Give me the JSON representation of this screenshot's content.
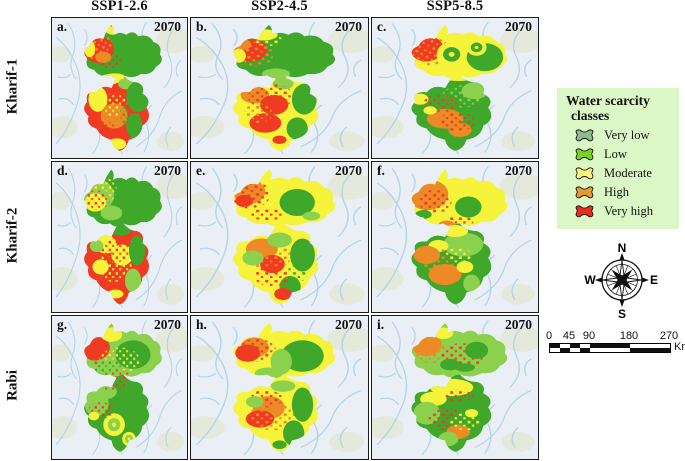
{
  "columns": [
    {
      "label": "SSP1-2.6"
    },
    {
      "label": "SSP2-4.5"
    },
    {
      "label": "SSP5-8.5"
    }
  ],
  "rows": [
    {
      "label": "Kharif-1"
    },
    {
      "label": "Kharif-2"
    },
    {
      "label": "Rabi"
    }
  ],
  "map_colors": {
    "green": "#3FA82A",
    "light_green": "#8CD14E",
    "yellow": "#F6F33B",
    "orange": "#EC8B26",
    "red": "#EE3B22",
    "water_bg": "#E9EFF4",
    "river": "#AECFE9",
    "terrain": "#E4E7D6"
  },
  "panels": [
    {
      "letter": "a.",
      "year": "2070",
      "scenario": "SSP1-2.6",
      "season": "Kharif-1",
      "north_base": "g",
      "south_base": "r",
      "blobs": [
        [
          "y",
          45,
          9,
          5,
          3,
          0
        ],
        [
          "r",
          35,
          23,
          11,
          9,
          -15
        ],
        [
          "so",
          33,
          20,
          12,
          9,
          -15
        ],
        [
          "sr",
          42,
          30,
          10,
          6,
          0
        ],
        [
          "y",
          28,
          22,
          4,
          6,
          0
        ],
        [
          "o",
          38,
          28,
          6,
          4,
          0
        ],
        [
          "y",
          42,
          44,
          12,
          4,
          -10
        ],
        [
          "y",
          34,
          58,
          7,
          9,
          0
        ],
        [
          "lg",
          55,
          47,
          6,
          4,
          0
        ],
        [
          "g",
          64,
          56,
          9,
          11,
          0
        ],
        [
          "g",
          61,
          77,
          6,
          9,
          0
        ],
        [
          "o",
          46,
          70,
          10,
          9,
          0
        ],
        [
          "sy",
          45,
          62,
          11,
          8,
          0
        ],
        [
          "sr",
          39,
          80,
          9,
          6,
          0
        ],
        [
          "y",
          48,
          90,
          7,
          4,
          0
        ],
        [
          "sg",
          58,
          68,
          8,
          10,
          0
        ]
      ]
    },
    {
      "letter": "b.",
      "year": "2070",
      "scenario": "SSP2-4.5",
      "season": "Kharif-1",
      "north_base": "g",
      "south_base": "y",
      "blobs": [
        [
          "y",
          41,
          12,
          8,
          4,
          0
        ],
        [
          "r",
          34,
          23,
          9,
          8,
          -10
        ],
        [
          "o",
          29,
          19,
          5,
          4,
          0
        ],
        [
          "so",
          36,
          26,
          11,
          9,
          -10
        ],
        [
          "y",
          27,
          27,
          4,
          5,
          0
        ],
        [
          "sy",
          44,
          16,
          8,
          4,
          0
        ],
        [
          "lg",
          48,
          40,
          8,
          4,
          0
        ],
        [
          "lg",
          52,
          47,
          6,
          4,
          0
        ],
        [
          "o",
          36,
          55,
          8,
          6,
          0
        ],
        [
          "r",
          47,
          62,
          8,
          7,
          0
        ],
        [
          "r",
          42,
          75,
          9,
          7,
          0
        ],
        [
          "sr",
          45,
          56,
          13,
          9,
          0
        ],
        [
          "so",
          38,
          68,
          8,
          7,
          0
        ],
        [
          "g",
          64,
          58,
          7,
          11,
          0
        ],
        [
          "g",
          60,
          79,
          6,
          8,
          0
        ],
        [
          "y",
          49,
          89,
          6,
          4,
          0
        ],
        [
          "r",
          50,
          87,
          4,
          3,
          0
        ]
      ]
    },
    {
      "letter": "c.",
      "year": "2070",
      "scenario": "SSP5-8.5",
      "season": "Kharif-1",
      "north_base": "y",
      "south_base": "g",
      "blobs": [
        [
          "r",
          33,
          22,
          10,
          9,
          -10
        ],
        [
          "so",
          35,
          24,
          12,
          10,
          -10
        ],
        [
          "sr",
          30,
          17,
          8,
          6,
          0
        ],
        [
          "g",
          68,
          28,
          11,
          10,
          0
        ],
        [
          "ring",
          "y",
          "g",
          48,
          26,
          9
        ],
        [
          "ring",
          "y",
          "g",
          63,
          21,
          6
        ],
        [
          "y",
          52,
          40,
          13,
          5,
          0
        ],
        [
          "slg",
          55,
          56,
          13,
          8,
          0
        ],
        [
          "lg",
          62,
          52,
          8,
          6,
          0
        ],
        [
          "y",
          29,
          58,
          5,
          4,
          0
        ],
        [
          "o",
          44,
          72,
          11,
          7,
          0
        ],
        [
          "o",
          53,
          80,
          7,
          5,
          0
        ],
        [
          "sr",
          42,
          61,
          11,
          7,
          0
        ],
        [
          "sr",
          51,
          74,
          11,
          7,
          0
        ],
        [
          "y",
          35,
          66,
          4,
          3,
          0
        ]
      ]
    },
    {
      "letter": "d.",
      "year": "2070",
      "scenario": "SSP1-2.6",
      "season": "Kharif-2",
      "north_base": "g",
      "south_base": "r",
      "blobs": [
        [
          "lg",
          35,
          22,
          11,
          10,
          0
        ],
        [
          "y",
          32,
          27,
          8,
          6,
          0
        ],
        [
          "sy",
          37,
          19,
          11,
          9,
          0
        ],
        [
          "sr",
          34,
          25,
          9,
          7,
          0
        ],
        [
          "lg",
          44,
          34,
          8,
          5,
          0
        ],
        [
          "y",
          40,
          55,
          8,
          6,
          0
        ],
        [
          "y",
          52,
          62,
          8,
          7,
          0
        ],
        [
          "y",
          36,
          70,
          6,
          5,
          0
        ],
        [
          "sy",
          46,
          70,
          13,
          10,
          0
        ],
        [
          "sr",
          47,
          59,
          11,
          8,
          0
        ],
        [
          "g",
          63,
          59,
          6,
          10,
          0
        ],
        [
          "lg",
          60,
          79,
          6,
          8,
          0
        ],
        [
          "g",
          51,
          45,
          8,
          4,
          0
        ],
        [
          "lg",
          33,
          56,
          5,
          4,
          0
        ],
        [
          "y",
          47,
          88,
          6,
          3,
          0
        ]
      ]
    },
    {
      "letter": "e.",
      "year": "2070",
      "scenario": "SSP2-4.5",
      "season": "Kharif-2",
      "north_base": "y",
      "south_base": "y",
      "blobs": [
        [
          "o",
          33,
          20,
          9,
          8,
          -10
        ],
        [
          "sr",
          34,
          22,
          11,
          9,
          -10
        ],
        [
          "r",
          30,
          26,
          5,
          4,
          0
        ],
        [
          "g",
          60,
          27,
          10,
          9,
          0
        ],
        [
          "sr",
          43,
          35,
          9,
          4,
          0
        ],
        [
          "lg",
          68,
          36,
          5,
          3,
          0
        ],
        [
          "o",
          40,
          58,
          9,
          7,
          0
        ],
        [
          "r",
          46,
          68,
          7,
          6,
          0
        ],
        [
          "so",
          44,
          62,
          13,
          10,
          0
        ],
        [
          "g",
          63,
          62,
          7,
          11,
          0
        ],
        [
          "g",
          56,
          83,
          6,
          7,
          0
        ],
        [
          "lg",
          50,
          52,
          7,
          5,
          0
        ],
        [
          "lg",
          35,
          64,
          6,
          5,
          0
        ],
        [
          "r",
          52,
          88,
          5,
          4,
          0
        ],
        [
          "sr",
          46,
          76,
          10,
          7,
          0
        ],
        [
          "sg",
          60,
          74,
          6,
          6,
          0
        ]
      ]
    },
    {
      "letter": "f.",
      "year": "2070",
      "scenario": "SSP5-8.5",
      "season": "Kharif-2",
      "north_base": "y",
      "south_base": "g",
      "blobs": [
        [
          "o",
          34,
          22,
          12,
          10,
          -10
        ],
        [
          "so",
          30,
          16,
          8,
          6,
          0
        ],
        [
          "sr",
          38,
          26,
          10,
          8,
          0
        ],
        [
          "g",
          31,
          35,
          5,
          3,
          0
        ],
        [
          "g",
          58,
          30,
          8,
          7,
          0
        ],
        [
          "sr",
          52,
          40,
          9,
          4,
          0
        ],
        [
          "o",
          45,
          42,
          5,
          3,
          0
        ],
        [
          "lg",
          55,
          55,
          12,
          8,
          0
        ],
        [
          "y",
          40,
          56,
          6,
          4,
          0
        ],
        [
          "y",
          50,
          46,
          8,
          4,
          0
        ],
        [
          "o",
          33,
          62,
          8,
          6,
          0
        ],
        [
          "o",
          44,
          75,
          10,
          7,
          0
        ],
        [
          "so",
          40,
          66,
          11,
          8,
          0
        ],
        [
          "y",
          56,
          70,
          5,
          4,
          0
        ],
        [
          "lg",
          60,
          81,
          5,
          6,
          0
        ],
        [
          "sy",
          52,
          62,
          8,
          5,
          0
        ]
      ]
    },
    {
      "letter": "g.",
      "year": "2070",
      "scenario": "SSP1-2.6",
      "season": "Rabi",
      "north_base": "lg",
      "south_base": "g",
      "blobs": [
        [
          "r",
          33,
          23,
          10,
          8,
          -15
        ],
        [
          "sr",
          38,
          29,
          11,
          7,
          0
        ],
        [
          "y",
          44,
          13,
          8,
          5,
          0
        ],
        [
          "g",
          60,
          27,
          13,
          10,
          0
        ],
        [
          "sy",
          50,
          31,
          15,
          9,
          0
        ],
        [
          "sg",
          42,
          36,
          11,
          5,
          0
        ],
        [
          "sr",
          50,
          42,
          11,
          4,
          0
        ],
        [
          "lg",
          33,
          61,
          9,
          9,
          0
        ],
        [
          "lg",
          40,
          53,
          8,
          5,
          0
        ],
        [
          "ring",
          "y",
          "lg",
          46,
          76,
          8
        ],
        [
          "ring",
          "y",
          "lg",
          57,
          86,
          5
        ],
        [
          "sr",
          36,
          66,
          9,
          6,
          0
        ],
        [
          "y",
          31,
          70,
          4,
          3,
          0
        ],
        [
          "sr",
          44,
          48,
          10,
          4,
          0
        ]
      ]
    },
    {
      "letter": "h.",
      "year": "2070",
      "scenario": "SSP2-4.5",
      "season": "Rabi",
      "north_base": "y",
      "south_base": "y",
      "blobs": [
        [
          "o",
          36,
          22,
          8,
          7,
          0
        ],
        [
          "r",
          32,
          26,
          7,
          6,
          0
        ],
        [
          "sr",
          37,
          24,
          11,
          8,
          0
        ],
        [
          "y",
          44,
          12,
          7,
          4,
          0
        ],
        [
          "g",
          63,
          28,
          12,
          11,
          0
        ],
        [
          "lg",
          51,
          32,
          6,
          9,
          0
        ],
        [
          "lg",
          44,
          40,
          8,
          4,
          0
        ],
        [
          "o",
          44,
          64,
          9,
          8,
          0
        ],
        [
          "r",
          39,
          72,
          8,
          6,
          0
        ],
        [
          "so",
          46,
          70,
          13,
          10,
          0
        ],
        [
          "sr",
          42,
          58,
          10,
          6,
          0
        ],
        [
          "g",
          63,
          62,
          6,
          12,
          0
        ],
        [
          "g",
          58,
          82,
          6,
          9,
          0
        ],
        [
          "lg",
          52,
          49,
          7,
          4,
          0
        ],
        [
          "g",
          50,
          90,
          4,
          3,
          0
        ],
        [
          "lg",
          36,
          60,
          5,
          4,
          0
        ]
      ]
    },
    {
      "letter": "i.",
      "year": "2070",
      "scenario": "SSP5-8.5",
      "season": "Rabi",
      "north_base": "lg",
      "south_base": "g",
      "blobs": [
        [
          "o",
          33,
          20,
          9,
          8,
          -10
        ],
        [
          "so",
          36,
          25,
          10,
          8,
          0
        ],
        [
          "sr",
          54,
          28,
          13,
          9,
          0
        ],
        [
          "g",
          63,
          24,
          7,
          6,
          0
        ],
        [
          "g",
          47,
          34,
          6,
          4,
          0
        ],
        [
          "y",
          43,
          12,
          6,
          4,
          0
        ],
        [
          "g",
          56,
          36,
          6,
          3,
          0
        ],
        [
          "y",
          48,
          50,
          13,
          6,
          0
        ],
        [
          "y",
          37,
          58,
          8,
          5,
          0
        ],
        [
          "g",
          56,
          62,
          7,
          6,
          0
        ],
        [
          "lg",
          33,
          68,
          8,
          8,
          0
        ],
        [
          "sr",
          44,
          72,
          11,
          8,
          0
        ],
        [
          "o",
          52,
          81,
          7,
          5,
          0
        ],
        [
          "sy",
          56,
          74,
          9,
          6,
          0
        ],
        [
          "y",
          60,
          68,
          4,
          3,
          0
        ],
        [
          "lg",
          46,
          86,
          6,
          5,
          0
        ],
        [
          "sr",
          52,
          56,
          9,
          4,
          0
        ]
      ]
    }
  ],
  "legend": {
    "title_line1": "Water scarcity",
    "title_line2": "classes",
    "bg": "#DBF7C6",
    "items": [
      {
        "label": "Very low",
        "color": "#8FBC88"
      },
      {
        "label": "Low",
        "color": "#7ED321"
      },
      {
        "label": "Moderate",
        "color": "#F7F77C"
      },
      {
        "label": "High",
        "color": "#E8992D"
      },
      {
        "label": "Very high",
        "color": "#EA2B1E"
      }
    ]
  },
  "compass": {
    "north": "N",
    "east": "E",
    "south": "S",
    "west": "W"
  },
  "scalebar": {
    "tick_labels": [
      "0",
      "45",
      "90",
      "180",
      "270"
    ],
    "tick_km": [
      0,
      45,
      90,
      180,
      270
    ],
    "total_km": 270,
    "segments_km": [
      [
        0,
        22.5
      ],
      [
        22.5,
        45
      ],
      [
        45,
        67.5
      ],
      [
        67.5,
        90
      ],
      [
        90,
        180
      ],
      [
        180,
        270
      ]
    ],
    "unit": "Km"
  }
}
